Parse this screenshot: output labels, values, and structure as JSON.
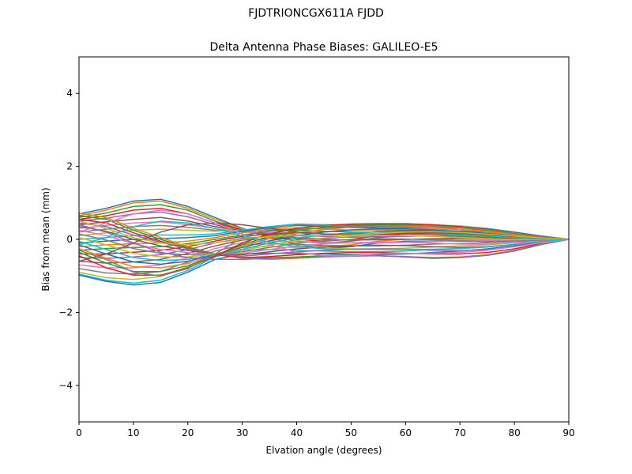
{
  "figure": {
    "suptitle": "FJDTRIONCGX611A FJDD"
  },
  "chart_data": {
    "type": "line",
    "title": "Delta Antenna Phase Biases: GALILEO-E5",
    "xlabel": "Elvation angle (degrees)",
    "ylabel": "Bias from mean (mm)",
    "xlim": [
      0,
      90
    ],
    "ylim": [
      -5,
      5
    ],
    "xticks": [
      0,
      10,
      20,
      30,
      40,
      50,
      60,
      70,
      80,
      90
    ],
    "yticks": [
      -4,
      -2,
      0,
      2,
      4
    ],
    "ytick_labels": [
      "−4",
      "−2",
      "0",
      "2",
      "4"
    ],
    "grid": false,
    "legend": "none",
    "x": [
      0,
      5,
      10,
      15,
      20,
      25,
      30,
      35,
      40,
      45,
      50,
      55,
      60,
      65,
      70,
      75,
      80,
      85,
      90
    ],
    "colors": [
      "#1f77b4",
      "#ff7f0e",
      "#2ca02c",
      "#d62728",
      "#9467bd",
      "#8c564b",
      "#e377c2",
      "#7f7f7f",
      "#bcbd22",
      "#17becf"
    ],
    "series": [
      {
        "values": [
          0.7,
          0.85,
          1.05,
          1.1,
          0.9,
          0.6,
          0.3,
          0.05,
          -0.15,
          -0.25,
          -0.2,
          -0.1,
          -0.05,
          -0.05,
          -0.05,
          -0.05,
          -0.05,
          -0.03,
          0
        ]
      },
      {
        "values": [
          0.65,
          0.8,
          1.0,
          1.05,
          0.85,
          0.55,
          0.28,
          0.05,
          -0.12,
          -0.2,
          -0.15,
          -0.05,
          0.0,
          0.0,
          0.0,
          0.0,
          -0.02,
          -0.02,
          0
        ]
      },
      {
        "values": [
          0.6,
          0.72,
          0.9,
          0.95,
          0.8,
          0.5,
          0.25,
          0.08,
          -0.05,
          -0.1,
          -0.05,
          0.05,
          0.1,
          0.1,
          0.08,
          0.05,
          0.02,
          0.0,
          0
        ]
      },
      {
        "values": [
          0.55,
          0.65,
          0.8,
          0.85,
          0.7,
          0.45,
          0.25,
          0.1,
          0.0,
          -0.05,
          0.0,
          0.1,
          0.15,
          0.15,
          0.12,
          0.08,
          0.04,
          0.02,
          0
        ]
      },
      {
        "values": [
          0.5,
          0.58,
          0.7,
          0.75,
          0.62,
          0.4,
          0.22,
          0.12,
          0.05,
          0.02,
          0.08,
          0.15,
          0.2,
          0.2,
          0.17,
          0.12,
          0.07,
          0.03,
          0
        ]
      },
      {
        "values": [
          0.4,
          0.48,
          0.55,
          0.6,
          0.5,
          0.35,
          0.22,
          0.15,
          0.12,
          0.1,
          0.15,
          0.22,
          0.25,
          0.25,
          0.22,
          0.16,
          0.1,
          0.05,
          0
        ]
      },
      {
        "values": [
          0.3,
          0.38,
          0.45,
          0.48,
          0.4,
          0.3,
          0.2,
          0.18,
          0.18,
          0.2,
          0.25,
          0.3,
          0.32,
          0.3,
          0.26,
          0.2,
          0.13,
          0.06,
          0
        ]
      },
      {
        "values": [
          0.2,
          0.28,
          0.35,
          0.38,
          0.33,
          0.25,
          0.22,
          0.25,
          0.28,
          0.3,
          0.33,
          0.36,
          0.38,
          0.36,
          0.32,
          0.25,
          0.16,
          0.07,
          0
        ]
      },
      {
        "values": [
          0.1,
          0.18,
          0.25,
          0.28,
          0.25,
          0.22,
          0.25,
          0.32,
          0.38,
          0.4,
          0.4,
          0.42,
          0.42,
          0.4,
          0.37,
          0.3,
          0.2,
          0.09,
          0
        ]
      },
      {
        "values": [
          0.0,
          0.05,
          0.1,
          0.12,
          0.12,
          0.15,
          0.25,
          0.35,
          0.42,
          0.4,
          0.38,
          0.38,
          0.38,
          0.38,
          0.35,
          0.3,
          0.2,
          0.09,
          0
        ]
      },
      {
        "values": [
          -0.1,
          -0.05,
          0.0,
          0.02,
          0.05,
          0.1,
          0.22,
          0.32,
          0.38,
          0.35,
          0.32,
          0.32,
          0.33,
          0.33,
          0.32,
          0.28,
          0.19,
          0.08,
          0
        ]
      },
      {
        "values": [
          -0.2,
          -0.15,
          -0.12,
          -0.1,
          -0.05,
          0.05,
          0.18,
          0.28,
          0.32,
          0.28,
          0.25,
          0.26,
          0.28,
          0.28,
          0.27,
          0.24,
          0.16,
          0.07,
          0
        ]
      },
      {
        "values": [
          -0.3,
          -0.25,
          -0.22,
          -0.2,
          -0.12,
          0.0,
          0.12,
          0.22,
          0.25,
          0.22,
          0.2,
          0.2,
          0.22,
          0.22,
          0.22,
          0.2,
          0.13,
          0.06,
          0
        ]
      },
      {
        "values": [
          -0.4,
          -0.4,
          -0.35,
          -0.3,
          -0.2,
          -0.05,
          0.08,
          0.15,
          0.18,
          0.15,
          0.12,
          0.14,
          0.15,
          0.16,
          0.16,
          0.14,
          0.1,
          0.05,
          0
        ]
      },
      {
        "values": [
          -0.5,
          -0.52,
          -0.48,
          -0.42,
          -0.28,
          -0.1,
          0.03,
          0.08,
          0.1,
          0.08,
          0.06,
          0.07,
          0.08,
          0.1,
          0.1,
          0.09,
          0.06,
          0.03,
          0
        ]
      },
      {
        "values": [
          -0.6,
          -0.65,
          -0.62,
          -0.55,
          -0.38,
          -0.18,
          -0.02,
          0.02,
          0.02,
          0.0,
          -0.02,
          -0.01,
          0.0,
          0.02,
          0.03,
          0.03,
          0.02,
          0.01,
          0
        ]
      },
      {
        "values": [
          -0.7,
          -0.78,
          -0.78,
          -0.7,
          -0.5,
          -0.25,
          -0.08,
          -0.05,
          -0.06,
          -0.08,
          -0.1,
          -0.1,
          -0.08,
          -0.06,
          -0.04,
          -0.03,
          -0.02,
          -0.01,
          0
        ]
      },
      {
        "values": [
          -0.8,
          -0.92,
          -0.95,
          -0.88,
          -0.62,
          -0.32,
          -0.15,
          -0.12,
          -0.14,
          -0.16,
          -0.18,
          -0.18,
          -0.16,
          -0.13,
          -0.11,
          -0.09,
          -0.06,
          -0.03,
          0
        ]
      },
      {
        "values": [
          -0.9,
          -1.05,
          -1.1,
          -1.02,
          -0.75,
          -0.4,
          -0.22,
          -0.2,
          -0.22,
          -0.24,
          -0.26,
          -0.26,
          -0.24,
          -0.21,
          -0.18,
          -0.15,
          -0.1,
          -0.04,
          0
        ]
      },
      {
        "values": [
          -0.95,
          -1.12,
          -1.2,
          -1.12,
          -0.85,
          -0.48,
          -0.3,
          -0.28,
          -0.3,
          -0.32,
          -0.34,
          -0.34,
          -0.32,
          -0.28,
          -0.25,
          -0.2,
          -0.14,
          -0.06,
          0
        ]
      },
      {
        "values": [
          -0.98,
          -1.15,
          -1.25,
          -1.18,
          -0.9,
          -0.55,
          -0.4,
          -0.38,
          -0.38,
          -0.4,
          -0.42,
          -0.42,
          -0.4,
          -0.36,
          -0.32,
          -0.26,
          -0.18,
          -0.08,
          0
        ]
      },
      {
        "values": [
          0.72,
          0.6,
          0.3,
          0.05,
          -0.2,
          -0.4,
          -0.52,
          -0.55,
          -0.52,
          -0.48,
          -0.45,
          -0.45,
          -0.48,
          -0.5,
          -0.48,
          -0.42,
          -0.3,
          -0.13,
          0
        ]
      },
      {
        "values": [
          0.65,
          0.55,
          0.25,
          0.0,
          -0.22,
          -0.4,
          -0.5,
          -0.5,
          -0.48,
          -0.45,
          -0.44,
          -0.45,
          -0.48,
          -0.52,
          -0.5,
          -0.44,
          -0.32,
          -0.14,
          0
        ]
      },
      {
        "values": [
          0.55,
          0.45,
          0.18,
          -0.05,
          -0.25,
          -0.42,
          -0.5,
          -0.47,
          -0.42,
          -0.38,
          -0.36,
          -0.36,
          -0.38,
          -0.4,
          -0.4,
          -0.36,
          -0.26,
          -0.11,
          0
        ]
      },
      {
        "values": [
          0.45,
          0.35,
          0.12,
          -0.08,
          -0.26,
          -0.4,
          -0.46,
          -0.4,
          -0.34,
          -0.3,
          -0.27,
          -0.26,
          -0.27,
          -0.3,
          -0.31,
          -0.28,
          -0.2,
          -0.09,
          0
        ]
      },
      {
        "values": [
          0.35,
          0.22,
          0.0,
          -0.18,
          -0.3,
          -0.4,
          -0.42,
          -0.34,
          -0.26,
          -0.21,
          -0.18,
          -0.16,
          -0.17,
          -0.2,
          -0.22,
          -0.2,
          -0.15,
          -0.07,
          0
        ]
      },
      {
        "values": [
          0.25,
          0.1,
          -0.12,
          -0.28,
          -0.36,
          -0.4,
          -0.38,
          -0.28,
          -0.18,
          -0.12,
          -0.09,
          -0.07,
          -0.08,
          -0.1,
          -0.13,
          -0.13,
          -0.1,
          -0.05,
          0
        ]
      },
      {
        "values": [
          0.15,
          -0.02,
          -0.25,
          -0.38,
          -0.42,
          -0.4,
          -0.34,
          -0.22,
          -0.1,
          -0.04,
          0.0,
          0.02,
          0.01,
          -0.01,
          -0.04,
          -0.06,
          -0.05,
          -0.02,
          0
        ]
      },
      {
        "values": [
          0.05,
          -0.15,
          -0.38,
          -0.48,
          -0.48,
          -0.4,
          -0.3,
          -0.16,
          -0.03,
          0.04,
          0.09,
          0.11,
          0.1,
          0.08,
          0.05,
          0.02,
          0.0,
          0.0,
          0
        ]
      },
      {
        "values": [
          -0.05,
          -0.28,
          -0.5,
          -0.58,
          -0.55,
          -0.42,
          -0.27,
          -0.1,
          0.04,
          0.12,
          0.18,
          0.2,
          0.2,
          0.17,
          0.13,
          0.09,
          0.05,
          0.02,
          0
        ]
      },
      {
        "values": [
          -0.15,
          -0.4,
          -0.62,
          -0.68,
          -0.6,
          -0.42,
          -0.22,
          -0.04,
          0.1,
          0.2,
          0.26,
          0.29,
          0.29,
          0.26,
          0.21,
          0.16,
          0.1,
          0.04,
          0
        ]
      },
      {
        "values": [
          -0.25,
          -0.52,
          -0.75,
          -0.78,
          -0.66,
          -0.44,
          -0.18,
          0.02,
          0.17,
          0.27,
          0.33,
          0.36,
          0.36,
          0.33,
          0.28,
          0.21,
          0.13,
          0.05,
          0
        ]
      },
      {
        "values": [
          -0.35,
          -0.65,
          -0.88,
          -0.88,
          -0.72,
          -0.45,
          -0.14,
          0.08,
          0.24,
          0.33,
          0.38,
          0.4,
          0.4,
          0.37,
          0.32,
          0.25,
          0.16,
          0.07,
          0
        ]
      },
      {
        "values": [
          -0.45,
          -0.78,
          -0.98,
          -0.98,
          -0.78,
          -0.46,
          -0.1,
          0.15,
          0.3,
          0.38,
          0.42,
          0.43,
          0.43,
          0.4,
          0.35,
          0.28,
          0.18,
          0.08,
          0
        ]
      },
      {
        "values": [
          0.4,
          0.2,
          -0.1,
          -0.35,
          -0.5,
          -0.55,
          -0.55,
          -0.52,
          -0.5,
          -0.48,
          -0.46,
          -0.45,
          -0.47,
          -0.5,
          -0.49,
          -0.43,
          -0.31,
          -0.13,
          0
        ]
      },
      {
        "values": [
          -0.6,
          -0.4,
          -0.1,
          0.2,
          0.4,
          0.45,
          0.4,
          0.3,
          0.2,
          0.15,
          0.14,
          0.16,
          0.18,
          0.18,
          0.16,
          0.12,
          0.08,
          0.03,
          0
        ]
      },
      {
        "values": [
          0.2,
          0.45,
          0.7,
          0.8,
          0.7,
          0.45,
          0.15,
          -0.15,
          -0.35,
          -0.45,
          -0.45,
          -0.4,
          -0.38,
          -0.38,
          -0.36,
          -0.3,
          -0.2,
          -0.09,
          0
        ]
      },
      {
        "values": [
          -0.3,
          -0.55,
          -0.9,
          -1.0,
          -0.8,
          -0.4,
          0.05,
          0.3,
          0.4,
          0.38,
          0.35,
          0.36,
          0.38,
          0.37,
          0.33,
          0.26,
          0.17,
          0.07,
          0
        ]
      },
      {
        "values": [
          0.5,
          0.3,
          0.05,
          -0.1,
          -0.15,
          -0.1,
          0.0,
          0.08,
          0.1,
          0.1,
          0.12,
          0.16,
          0.2,
          0.21,
          0.19,
          0.14,
          0.09,
          0.04,
          0
        ]
      },
      {
        "values": [
          -0.15,
          0.05,
          0.35,
          0.5,
          0.45,
          0.3,
          0.1,
          -0.08,
          -0.2,
          -0.26,
          -0.28,
          -0.28,
          -0.28,
          -0.27,
          -0.25,
          -0.21,
          -0.14,
          -0.06,
          0
        ]
      }
    ]
  }
}
